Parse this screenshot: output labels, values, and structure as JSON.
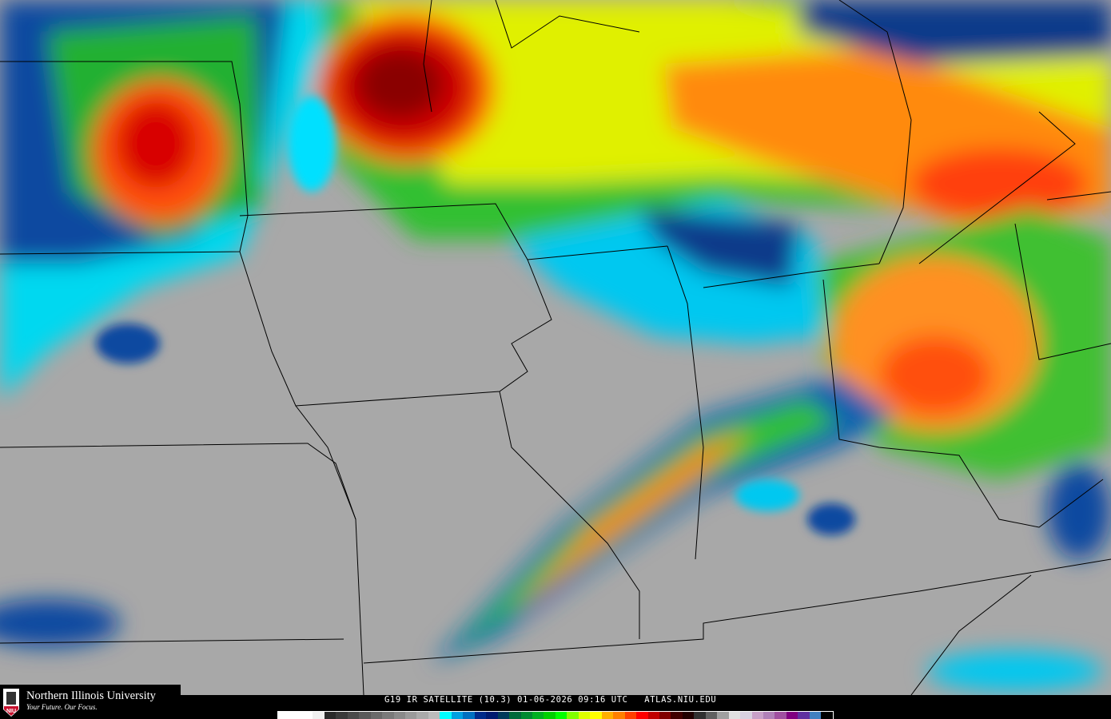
{
  "branding": {
    "name": "Northern Illinois University",
    "tagline": "Your Future. Our Focus.",
    "shield_text": "NIU",
    "color": "#c8102e"
  },
  "caption": "G19 IR SATELLITE (10.3) 01-06-2026 09:16 UTC   ATLAS.NIU.EDU",
  "colorbar": [
    "#ffffff",
    "#ffffff",
    "#ffffff",
    "#f0f0f0",
    "#2a2a2a",
    "#3a3a3a",
    "#4a4a4a",
    "#5a5a5a",
    "#6a6a6a",
    "#7a7a7a",
    "#8a8a8a",
    "#9a9a9a",
    "#aaaaaa",
    "#bbbbbb",
    "#00ffff",
    "#00a0e0",
    "#0070c0",
    "#002a8a",
    "#001a70",
    "#003a5a",
    "#006a3a",
    "#008a30",
    "#00b020",
    "#00d000",
    "#00ff00",
    "#80ff00",
    "#ddff00",
    "#ffff00",
    "#ffb000",
    "#ff8000",
    "#ff4000",
    "#ff0000",
    "#c00000",
    "#800000",
    "#400000",
    "#200000",
    "#303030",
    "#606060",
    "#a0a0a0",
    "#e0e0e0",
    "#d8d0e0",
    "#c8a0c8",
    "#b080b8",
    "#a050a0",
    "#800080",
    "#6030a0",
    "#4080c0",
    "#000000"
  ]
}
